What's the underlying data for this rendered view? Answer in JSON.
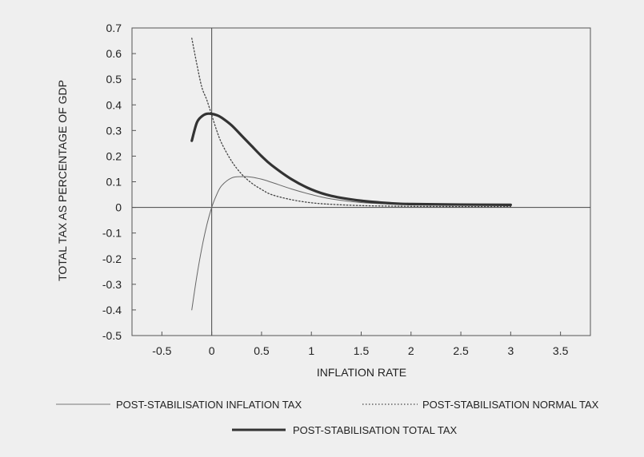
{
  "chart_data": {
    "type": "line",
    "title": "",
    "xlabel": "INFLATION RATE",
    "ylabel": "TOTAL TAX AS PERCENTAGE OF GDP",
    "xlim": [
      -0.8,
      3.8
    ],
    "ylim": [
      -0.5,
      0.7
    ],
    "x_ticks": [
      -0.5,
      0,
      0.5,
      1,
      1.5,
      2,
      2.5,
      3,
      3.5
    ],
    "y_ticks": [
      -0.5,
      -0.4,
      -0.3,
      -0.2,
      -0.1,
      0,
      0.1,
      0.2,
      0.3,
      0.4,
      0.5,
      0.6,
      0.7
    ],
    "x_tick_labels": [
      "-0.5",
      "0",
      "0.5",
      "1",
      "1.5",
      "2",
      "2.5",
      "3",
      "3.5"
    ],
    "y_tick_labels": [
      "-0.5",
      "-0.4",
      "-0.3",
      "-0.2",
      "-0.1",
      "0",
      "0.1",
      "0.2",
      "0.3",
      "0.4",
      "0.5",
      "0.6",
      "0.7"
    ],
    "grid": false,
    "legend_position": "bottom",
    "series": [
      {
        "name": "POST-STABILISATION INFLATION TAX",
        "style": "thin-solid",
        "color": "#666666",
        "x": [
          -0.2,
          -0.15,
          -0.1,
          -0.05,
          0,
          0.05,
          0.1,
          0.2,
          0.3,
          0.4,
          0.5,
          0.6,
          0.8,
          1.0,
          1.2,
          1.5,
          1.8,
          2.0,
          2.5,
          3.0
        ],
        "y": [
          -0.4,
          -0.27,
          -0.16,
          -0.07,
          0.0,
          0.05,
          0.085,
          0.115,
          0.12,
          0.118,
          0.11,
          0.098,
          0.072,
          0.05,
          0.033,
          0.019,
          0.013,
          0.011,
          0.009,
          0.008
        ]
      },
      {
        "name": "POST-STABILISATION NORMAL TAX",
        "style": "dotted",
        "color": "#444444",
        "x": [
          -0.2,
          -0.15,
          -0.1,
          -0.05,
          0,
          0.05,
          0.1,
          0.2,
          0.3,
          0.4,
          0.5,
          0.6,
          0.8,
          1.0,
          1.2,
          1.5,
          1.8,
          2.0,
          2.5,
          3.0
        ],
        "y": [
          0.66,
          0.56,
          0.47,
          0.42,
          0.36,
          0.3,
          0.25,
          0.18,
          0.13,
          0.095,
          0.07,
          0.05,
          0.03,
          0.018,
          0.012,
          0.007,
          0.005,
          0.004,
          0.003,
          0.003
        ]
      },
      {
        "name": "POST-STABILISATION TOTAL TAX",
        "style": "thick-solid",
        "color": "#333333",
        "x": [
          -0.2,
          -0.15,
          -0.1,
          -0.05,
          0,
          0.05,
          0.1,
          0.2,
          0.3,
          0.4,
          0.5,
          0.6,
          0.8,
          1.0,
          1.2,
          1.5,
          1.8,
          2.0,
          2.5,
          3.0
        ],
        "y": [
          0.26,
          0.33,
          0.355,
          0.365,
          0.365,
          0.36,
          0.35,
          0.32,
          0.28,
          0.24,
          0.2,
          0.165,
          0.11,
          0.07,
          0.045,
          0.026,
          0.016,
          0.013,
          0.011,
          0.01
        ]
      }
    ]
  }
}
